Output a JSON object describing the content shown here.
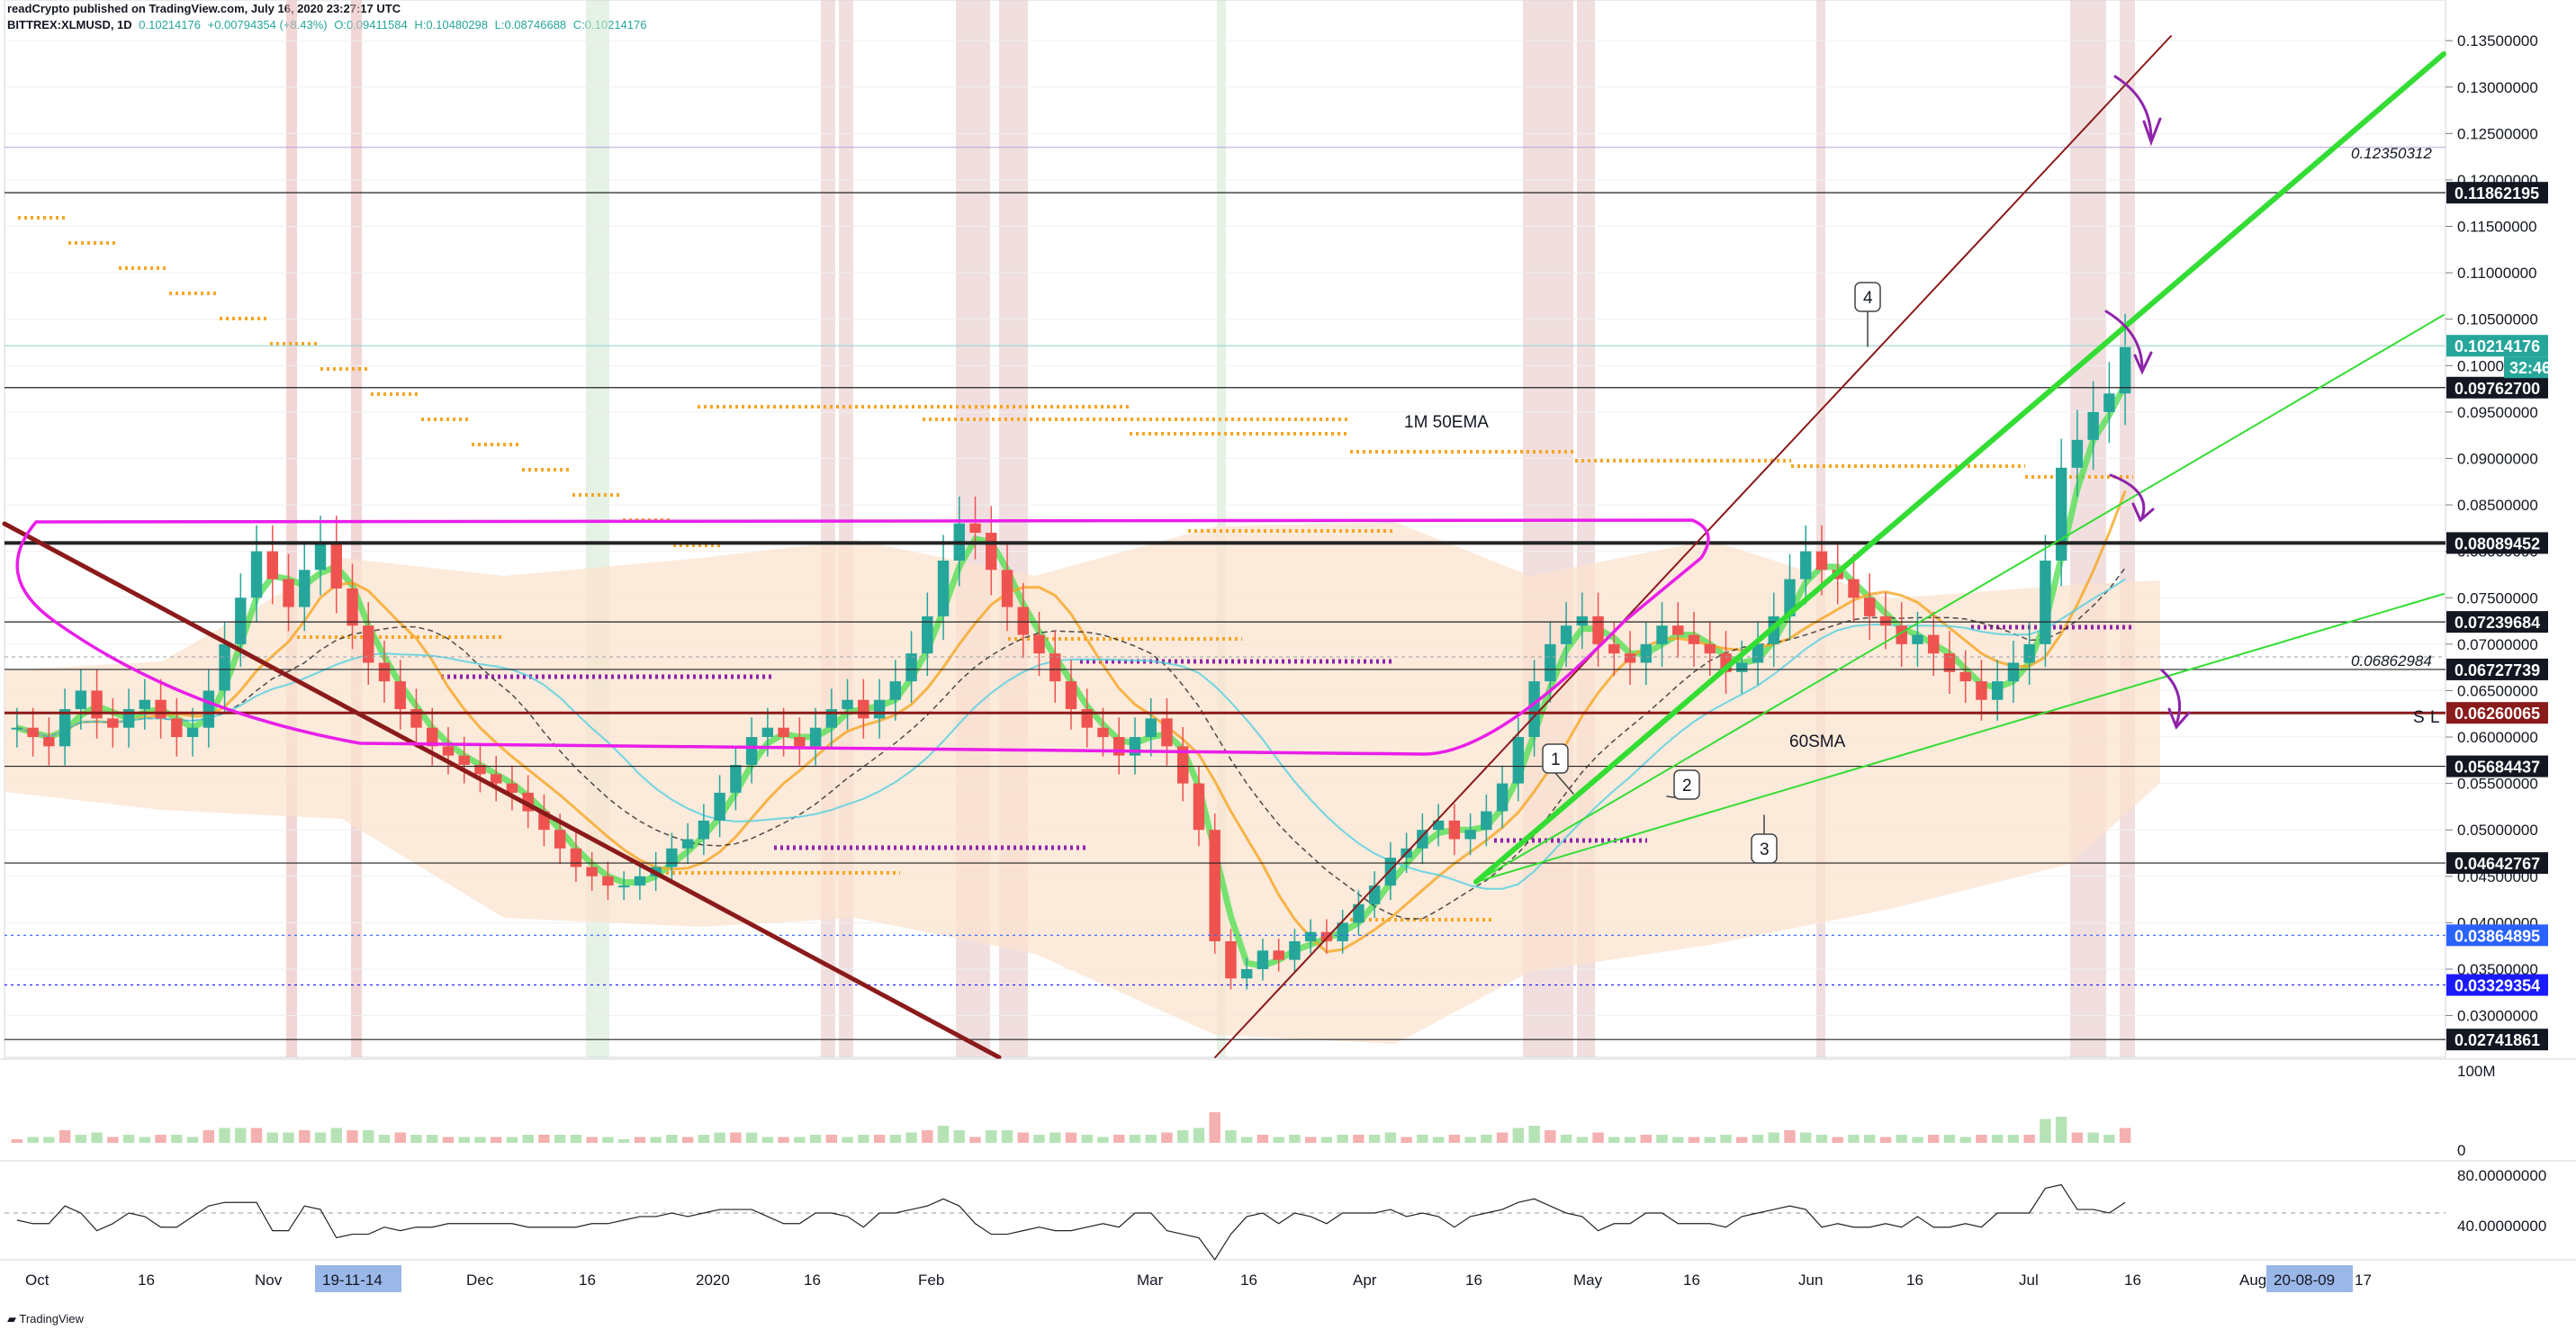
{
  "header": {
    "line1": "readCrypto published on TradingView.com, July 16, 2020 23:27:17 UTC",
    "symbol": "BITTREX:XLMUSD, 1D",
    "last": "0.10214176",
    "change": "+0.00794354 (+8.43%)",
    "open": "O:0.09411584",
    "high": "H:0.10480298",
    "low": "L:0.08746688",
    "close": "C:0.10214176"
  },
  "footer": {
    "brand": "TradingView"
  },
  "colors": {
    "up": "#26a69a",
    "down": "#ef5350",
    "ribbon": "#fbe3cf",
    "magenta": "#e91ee9",
    "darkred": "#8b1a1a",
    "green": "#33dd33",
    "orange": "#f5a623",
    "purple": "#8e24aa"
  },
  "chart_data": {
    "type": "candlestick",
    "ylim": [
      0.0255,
      0.1355
    ],
    "y_scale": "linear",
    "y_ticks": [
      "0.13500000",
      "0.13000000",
      "0.12500000",
      "0.12000000",
      "0.11500000",
      "0.11000000",
      "0.10500000",
      "0.10000000",
      "0.09500000",
      "0.09000000",
      "0.08500000",
      "0.08000000",
      "0.07500000",
      "0.07000000",
      "0.06500000",
      "0.06000000",
      "0.05500000",
      "0.05000000",
      "0.04500000",
      "0.04000000",
      "0.03500000",
      "0.03000000"
    ],
    "x_ticks": [
      "Oct",
      "16",
      "Nov",
      "Dec",
      "16",
      "2020",
      "16",
      "Feb",
      "Mar",
      "16",
      "Apr",
      "16",
      "May",
      "16",
      "Jun",
      "16",
      "Jul",
      "16",
      "Aug",
      "17"
    ],
    "x_highlight_labels": [
      "19-11-14",
      "20-08-09"
    ],
    "horizontal_levels": [
      {
        "label": "0.11862195",
        "value": 0.11862195,
        "bg": "#131722",
        "fg": "#ffffff"
      },
      {
        "label": "0.10214176",
        "value": 0.10214176,
        "bg": "#26a69a",
        "fg": "#ffffff"
      },
      {
        "label": "0.09762700",
        "value": 0.097627,
        "bg": "#131722",
        "fg": "#ffffff"
      },
      {
        "label": "0.08089452",
        "value": 0.08089452,
        "bg": "#131722",
        "fg": "#ffffff"
      },
      {
        "label": "0.07239684",
        "value": 0.07239684,
        "bg": "#131722",
        "fg": "#ffffff"
      },
      {
        "label": "0.06727739",
        "value": 0.06727739,
        "bg": "#131722",
        "fg": "#ffffff"
      },
      {
        "label": "0.06260065",
        "value": 0.06260065,
        "bg": "#8b1a1a",
        "fg": "#ffffff"
      },
      {
        "label": "0.05684437",
        "value": 0.05684437,
        "bg": "#131722",
        "fg": "#ffffff"
      },
      {
        "label": "0.04642767",
        "value": 0.04642767,
        "bg": "#131722",
        "fg": "#ffffff"
      },
      {
        "label": "0.03864895",
        "value": 0.03864895,
        "bg": "#2962ff",
        "fg": "#ffffff"
      },
      {
        "label": "0.03329354",
        "value": 0.03329354,
        "bg": "#1a1aff",
        "fg": "#ffffff"
      },
      {
        "label": "0.02741861",
        "value": 0.02741861,
        "bg": "#131722",
        "fg": "#ffffff"
      }
    ],
    "countdown": "32:46",
    "annotations": [
      "1M 50EMA",
      "60SMA",
      "0.12350312",
      "0.06862984",
      "1",
      "2",
      "3",
      "4",
      "S",
      "L"
    ],
    "close_series": [
      0.061,
      0.06,
      0.059,
      0.063,
      0.065,
      0.062,
      0.061,
      0.063,
      0.064,
      0.062,
      0.06,
      0.061,
      0.065,
      0.07,
      0.075,
      0.08,
      0.077,
      0.074,
      0.078,
      0.081,
      0.076,
      0.072,
      0.068,
      0.066,
      0.063,
      0.061,
      0.059,
      0.058,
      0.057,
      0.056,
      0.055,
      0.054,
      0.052,
      0.05,
      0.048,
      0.046,
      0.045,
      0.044,
      0.044,
      0.045,
      0.046,
      0.048,
      0.049,
      0.051,
      0.054,
      0.057,
      0.06,
      0.061,
      0.06,
      0.059,
      0.061,
      0.063,
      0.064,
      0.062,
      0.064,
      0.066,
      0.069,
      0.073,
      0.079,
      0.083,
      0.082,
      0.078,
      0.074,
      0.071,
      0.069,
      0.066,
      0.063,
      0.061,
      0.06,
      0.058,
      0.06,
      0.062,
      0.059,
      0.055,
      0.05,
      0.038,
      0.034,
      0.035,
      0.037,
      0.036,
      0.038,
      0.039,
      0.038,
      0.04,
      0.042,
      0.044,
      0.047,
      0.048,
      0.05,
      0.051,
      0.049,
      0.05,
      0.052,
      0.055,
      0.06,
      0.066,
      0.07,
      0.072,
      0.073,
      0.07,
      0.069,
      0.068,
      0.07,
      0.072,
      0.071,
      0.07,
      0.069,
      0.067,
      0.068,
      0.07,
      0.073,
      0.077,
      0.08,
      0.078,
      0.077,
      0.075,
      0.073,
      0.072,
      0.07,
      0.071,
      0.069,
      0.067,
      0.066,
      0.064,
      0.066,
      0.068,
      0.07,
      0.079,
      0.089,
      0.092,
      0.095,
      0.097,
      0.102
    ],
    "volume_axis": [
      "100M",
      "0"
    ],
    "rsi_axis": [
      "80.00000000",
      "40.00000000"
    ]
  }
}
